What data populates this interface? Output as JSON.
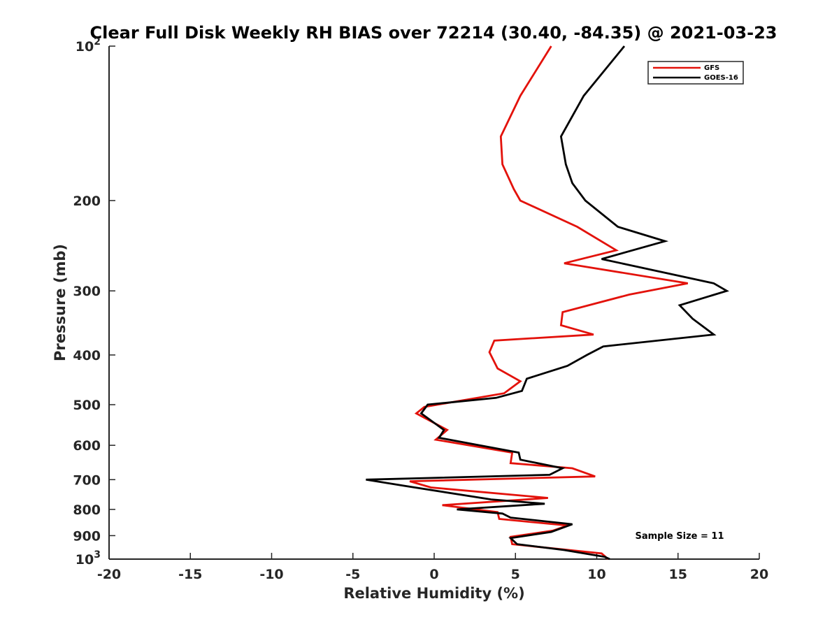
{
  "chart_data": {
    "type": "line",
    "title": "Clear Full Disk Weekly RH BIAS over 72214 (30.40, -84.35) @ 2021-03-23",
    "xlabel": "Relative Humidity (%)",
    "ylabel": "Pressure (mb)",
    "xlim": [
      -20,
      20
    ],
    "ylim": [
      100,
      1000
    ],
    "yscale": "log",
    "y_reversed": true,
    "grid": false,
    "legend_position": "top-right",
    "x_ticks": [
      {
        "value": -20,
        "label": "-20"
      },
      {
        "value": -15,
        "label": "-15"
      },
      {
        "value": -10,
        "label": "-10"
      },
      {
        "value": -5,
        "label": "-5"
      },
      {
        "value": 0,
        "label": "0"
      },
      {
        "value": 5,
        "label": "5"
      },
      {
        "value": 10,
        "label": "10"
      },
      {
        "value": 15,
        "label": "15"
      },
      {
        "value": 20,
        "label": "20"
      }
    ],
    "y_ticks": [
      {
        "value": 100,
        "base": "10",
        "exp": "2"
      },
      {
        "value": 200,
        "label": "200"
      },
      {
        "value": 300,
        "label": "300"
      },
      {
        "value": 400,
        "label": "400"
      },
      {
        "value": 500,
        "label": "500"
      },
      {
        "value": 600,
        "label": "600"
      },
      {
        "value": 700,
        "label": "700"
      },
      {
        "value": 800,
        "label": "800"
      },
      {
        "value": 900,
        "label": "900"
      },
      {
        "value": 1000,
        "base": "10",
        "exp": "3"
      }
    ],
    "series": [
      {
        "name": "GFS",
        "color": "#e3120b",
        "points": [
          [
            7.2,
            100
          ],
          [
            5.3,
            125
          ],
          [
            4.1,
            150
          ],
          [
            4.2,
            170
          ],
          [
            4.9,
            190
          ],
          [
            5.3,
            200
          ],
          [
            8.8,
            225
          ],
          [
            11.2,
            250
          ],
          [
            8.0,
            265
          ],
          [
            15.6,
            290
          ],
          [
            12.0,
            305
          ],
          [
            7.9,
            330
          ],
          [
            7.8,
            350
          ],
          [
            9.8,
            365
          ],
          [
            3.7,
            375
          ],
          [
            3.4,
            395
          ],
          [
            3.9,
            425
          ],
          [
            5.3,
            450
          ],
          [
            4.3,
            475
          ],
          [
            -0.6,
            505
          ],
          [
            -1.1,
            520
          ],
          [
            0.8,
            560
          ],
          [
            0.1,
            585
          ],
          [
            4.8,
            620
          ],
          [
            4.7,
            650
          ],
          [
            8.5,
            665
          ],
          [
            9.9,
            690
          ],
          [
            -1.5,
            705
          ],
          [
            -0.2,
            725
          ],
          [
            7.0,
            760
          ],
          [
            0.5,
            785
          ],
          [
            3.9,
            810
          ],
          [
            4.0,
            835
          ],
          [
            8.2,
            860
          ],
          [
            7.3,
            880
          ],
          [
            4.7,
            905
          ],
          [
            4.8,
            935
          ],
          [
            10.3,
            975
          ],
          [
            10.7,
            1000
          ]
        ]
      },
      {
        "name": "GOES-16",
        "color": "#000000",
        "points": [
          [
            11.7,
            100
          ],
          [
            9.2,
            125
          ],
          [
            7.8,
            150
          ],
          [
            8.1,
            170
          ],
          [
            8.5,
            185
          ],
          [
            9.3,
            200
          ],
          [
            11.3,
            225
          ],
          [
            14.2,
            240
          ],
          [
            10.3,
            260
          ],
          [
            17.2,
            290
          ],
          [
            18.0,
            300
          ],
          [
            15.1,
            320
          ],
          [
            15.9,
            340
          ],
          [
            17.2,
            365
          ],
          [
            10.4,
            385
          ],
          [
            9.4,
            400
          ],
          [
            8.2,
            420
          ],
          [
            5.7,
            445
          ],
          [
            5.4,
            470
          ],
          [
            3.8,
            485
          ],
          [
            -0.4,
            500
          ],
          [
            -0.8,
            520
          ],
          [
            0.6,
            560
          ],
          [
            0.3,
            580
          ],
          [
            5.2,
            620
          ],
          [
            5.3,
            640
          ],
          [
            7.9,
            665
          ],
          [
            7.1,
            685
          ],
          [
            -4.2,
            700
          ],
          [
            -1.8,
            720
          ],
          [
            3.5,
            765
          ],
          [
            6.8,
            780
          ],
          [
            1.4,
            800
          ],
          [
            4.2,
            815
          ],
          [
            4.7,
            830
          ],
          [
            8.5,
            855
          ],
          [
            7.2,
            885
          ],
          [
            4.7,
            910
          ],
          [
            5.1,
            935
          ],
          [
            8.0,
            960
          ],
          [
            10.5,
            990
          ],
          [
            10.8,
            1000
          ]
        ]
      }
    ],
    "annotations": [
      {
        "text": "Sample Size = 11",
        "x": 16.5,
        "y": 910
      }
    ]
  }
}
